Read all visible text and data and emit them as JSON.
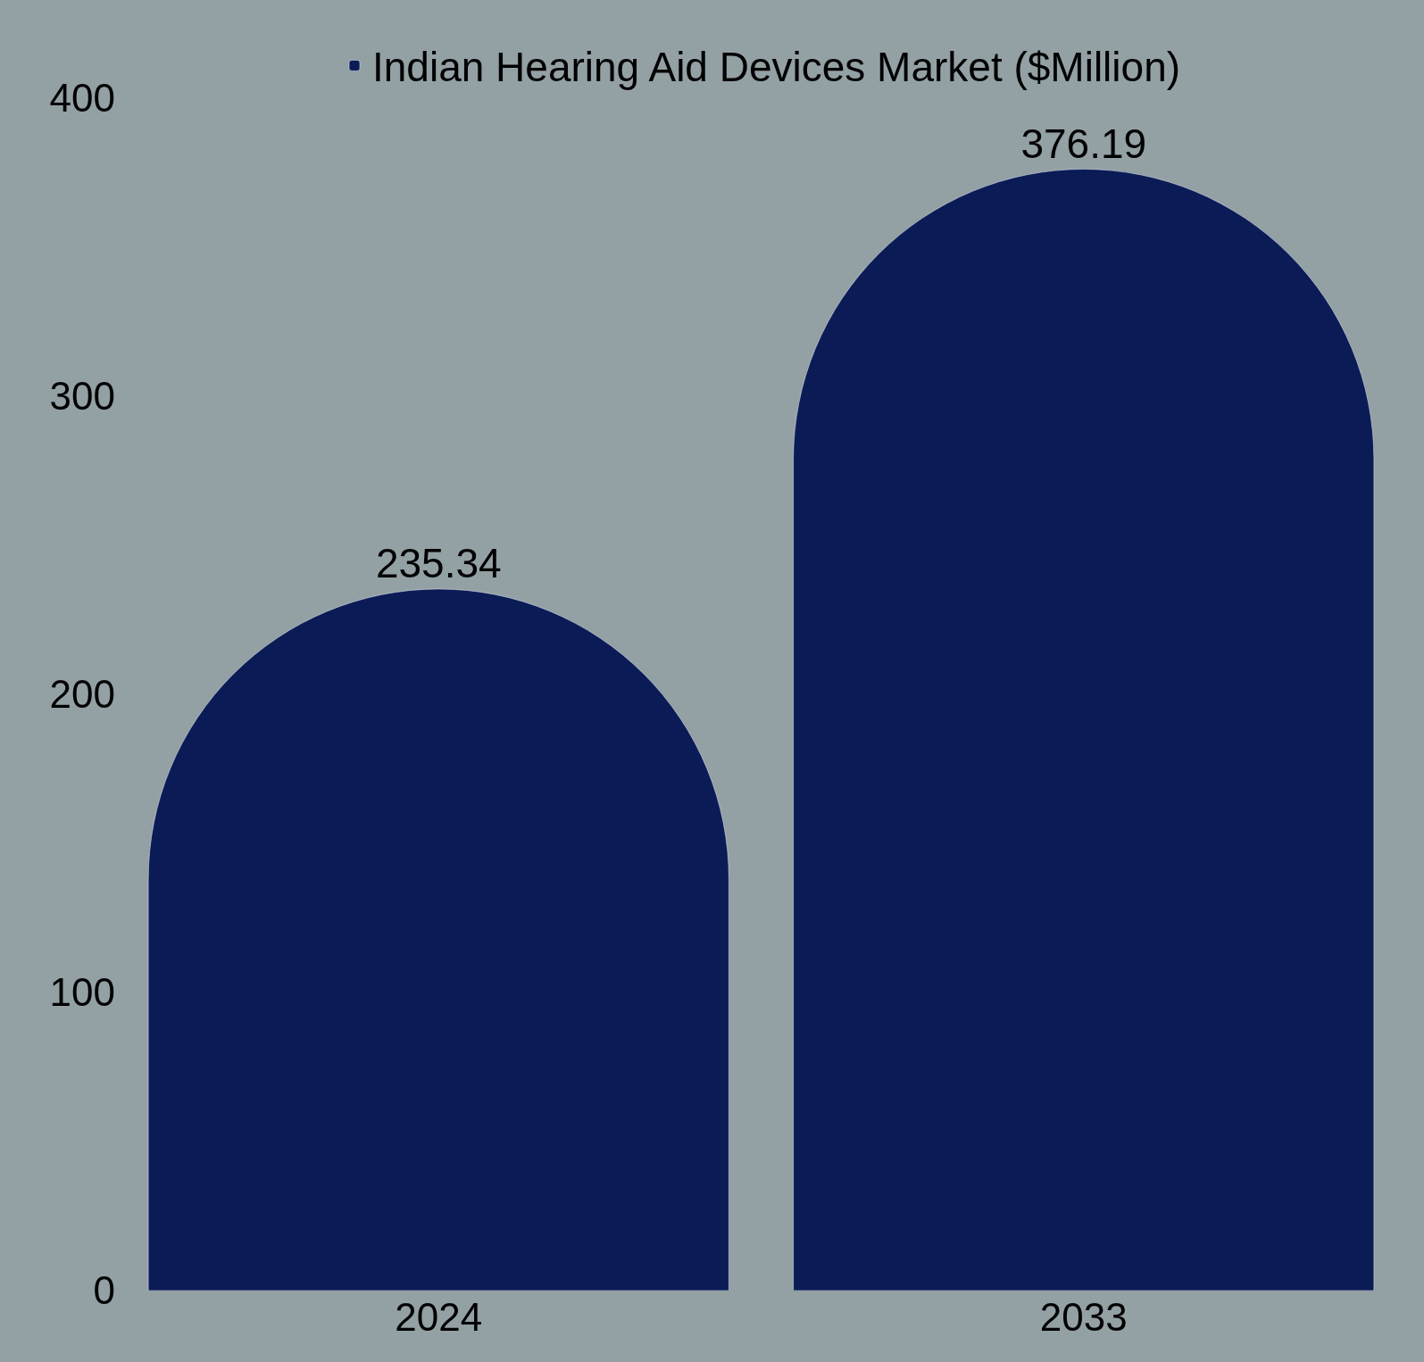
{
  "chart_data": {
    "type": "bar",
    "categories": [
      "2024",
      "2033"
    ],
    "series": [
      {
        "name": "Indian Hearing Aid Devices Market ($Million)",
        "color": "#0b1b55",
        "values": [
          235.34,
          376.19
        ]
      }
    ],
    "ylim": [
      0,
      400
    ],
    "yticks": [
      0,
      100,
      200,
      300,
      400
    ],
    "grid": false,
    "legend": "top",
    "data_labels": true
  }
}
